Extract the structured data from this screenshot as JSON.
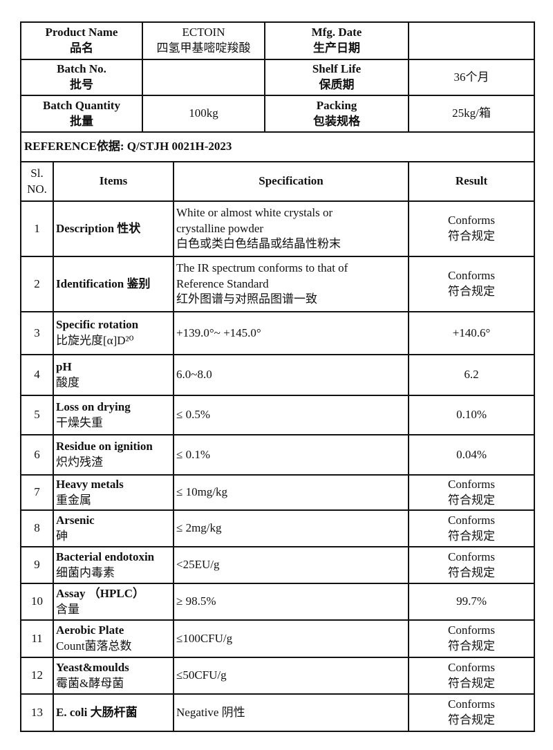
{
  "header": {
    "product_name_label_en": "Product Name",
    "product_name_label_zh": "品名",
    "product_name_en": "ECTOIN",
    "product_name_zh": "四氢甲基嘧啶羧酸",
    "mfg_date_label_en": "Mfg. Date",
    "mfg_date_label_zh": "生产日期",
    "mfg_date": "",
    "batch_no_label_en": "Batch No.",
    "batch_no_label_zh": "批号",
    "batch_no": "",
    "shelf_life_label_en": "Shelf Life",
    "shelf_life_label_zh": "保质期",
    "shelf_life": "36个月",
    "batch_qty_label_en": "Batch Quantity",
    "batch_qty_label_zh": "批量",
    "batch_qty": "100kg",
    "packing_label_en": "Packing",
    "packing_label_zh": "包装规格",
    "packing": "25kg/箱"
  },
  "reference": "REFERENCE依据:  Q/STJH 0021H-2023",
  "columns": {
    "no_1": "Sl.",
    "no_2": "NO.",
    "items": "Items",
    "spec": "Specification",
    "result": "Result"
  },
  "rows": [
    {
      "no": "1",
      "item_en": "Description 性状",
      "item_zh": "",
      "spec": [
        "White or almost white crystals or",
        "crystalline powder",
        "白色或类白色结晶或结晶性粉末"
      ],
      "result": [
        "Conforms",
        "符合规定"
      ]
    },
    {
      "no": "2",
      "item_en": "Identification 鉴别",
      "item_zh": "",
      "spec": [
        "The IR spectrum conforms to that of",
        "Reference Standard",
        "红外图谱与对照品图谱一致"
      ],
      "result": [
        "Conforms",
        "符合规定"
      ]
    },
    {
      "no": "3",
      "item_en": "Specific rotation",
      "item_zh": "比旋光度[α]D²⁰",
      "spec": [
        "+139.0°~ +145.0°"
      ],
      "result": [
        "+140.6°"
      ]
    },
    {
      "no": "4",
      "item_en": "pH",
      "item_zh": "酸度",
      "spec": [
        "6.0~8.0"
      ],
      "result": [
        "6.2"
      ]
    },
    {
      "no": "5",
      "item_en": "Loss on drying",
      "item_zh": "干燥失重",
      "spec": [
        "≤ 0.5%"
      ],
      "result": [
        "0.10%"
      ]
    },
    {
      "no": "6",
      "item_en": "Residue on ignition",
      "item_zh": "炽灼残渣",
      "spec": [
        "≤ 0.1%"
      ],
      "result": [
        "0.04%"
      ]
    },
    {
      "no": "7",
      "item_en": "Heavy metals",
      "item_zh": "重金属",
      "spec": [
        "≤ 10mg/kg"
      ],
      "result": [
        "Conforms",
        "符合规定"
      ]
    },
    {
      "no": "8",
      "item_en": "Arsenic",
      "item_zh": "砷",
      "spec": [
        "≤ 2mg/kg"
      ],
      "result": [
        "Conforms",
        "符合规定"
      ]
    },
    {
      "no": "9",
      "item_en": "Bacterial endotoxin",
      "item_zh": "细菌内毒素",
      "spec": [
        "<25EU/g"
      ],
      "result": [
        "Conforms",
        "符合规定"
      ]
    },
    {
      "no": "10",
      "item_en": "Assay （HPLC）",
      "item_zh": "含量",
      "spec": [
        "≥ 98.5%"
      ],
      "result": [
        "99.7%"
      ]
    },
    {
      "no": "11",
      "item_en": "Aerobic Plate",
      "item_zh": "Count菌落总数",
      "spec": [
        "≤100CFU/g"
      ],
      "result": [
        "Conforms",
        "符合规定"
      ]
    },
    {
      "no": "12",
      "item_en": "Yeast&moulds",
      "item_zh": "霉菌&酵母菌",
      "spec": [
        "≤50CFU/g"
      ],
      "result": [
        "Conforms",
        "符合规定"
      ]
    },
    {
      "no": "13",
      "item_en": "E. coli 大肠杆菌",
      "item_zh": "",
      "spec": [
        "Negative 阴性"
      ],
      "result": [
        "Conforms",
        "符合规定"
      ]
    }
  ]
}
